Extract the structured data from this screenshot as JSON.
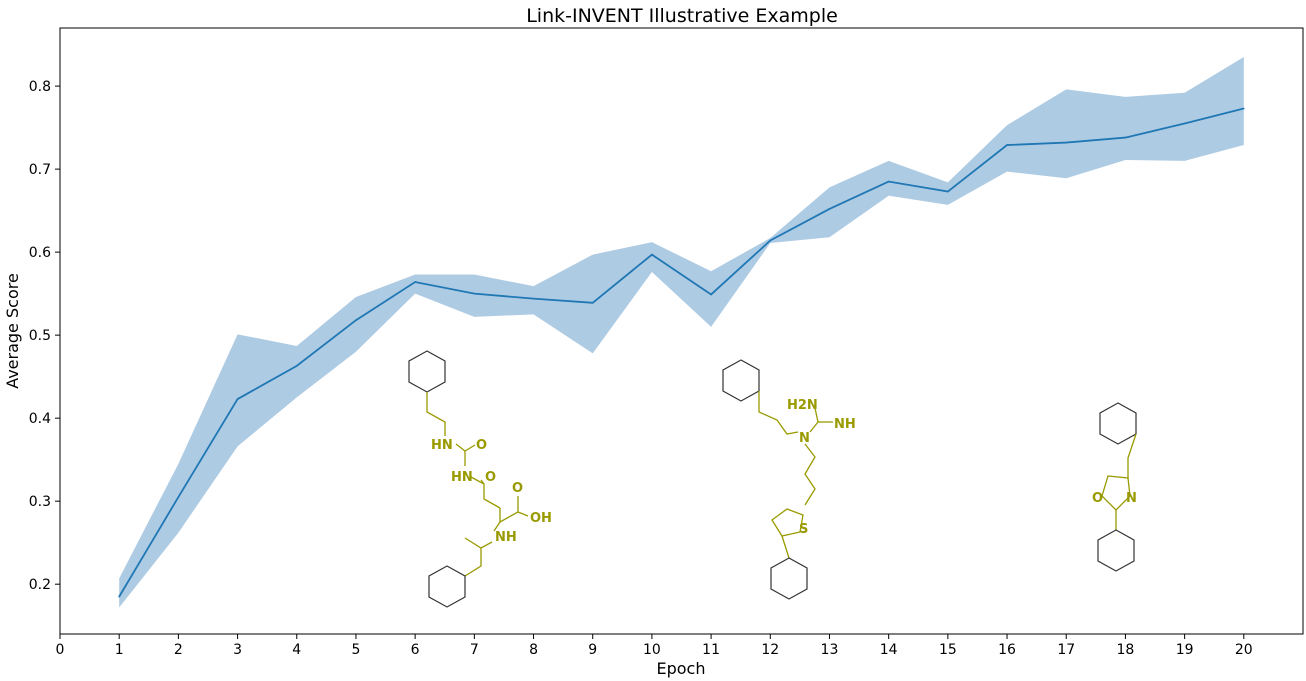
{
  "chart_data": {
    "type": "line",
    "title": "Link-INVENT Illustrative Example",
    "xlabel": "Epoch",
    "ylabel": "Average Score",
    "xlim": [
      0,
      21
    ],
    "ylim": [
      0.14,
      0.87
    ],
    "x_ticks": [
      0,
      1,
      2,
      3,
      4,
      5,
      6,
      7,
      8,
      9,
      10,
      11,
      12,
      13,
      14,
      15,
      16,
      17,
      18,
      19,
      20
    ],
    "y_ticks": [
      0.2,
      0.3,
      0.4,
      0.5,
      0.6,
      0.7,
      0.8
    ],
    "grid": false,
    "x": [
      1,
      2,
      3,
      4,
      5,
      6,
      7,
      8,
      9,
      10,
      11,
      12,
      13,
      14,
      15,
      16,
      17,
      18,
      19,
      20
    ],
    "series": [
      {
        "values": [
          0.185,
          0.305,
          0.423,
          0.463,
          0.518,
          0.564,
          0.55,
          0.544,
          0.539,
          0.597,
          0.549,
          0.614,
          0.652,
          0.685,
          0.673,
          0.729,
          0.732,
          0.738,
          0.755,
          0.773
        ],
        "lower": [
          0.172,
          0.262,
          0.366,
          0.425,
          0.48,
          0.55,
          0.522,
          0.525,
          0.478,
          0.576,
          0.51,
          0.611,
          0.618,
          0.668,
          0.657,
          0.697,
          0.689,
          0.711,
          0.71,
          0.729
        ],
        "upper": [
          0.207,
          0.345,
          0.501,
          0.487,
          0.546,
          0.573,
          0.573,
          0.559,
          0.597,
          0.612,
          0.577,
          0.617,
          0.678,
          0.71,
          0.684,
          0.753,
          0.796,
          0.787,
          0.792,
          0.835
        ],
        "color": "#1f77b4",
        "band_color": "#aecbe4"
      }
    ],
    "annotations": {
      "molecule_1": {
        "atoms": [
          "HN",
          "O",
          "HN",
          "O",
          "OH",
          "NH"
        ]
      },
      "molecule_2": {
        "atoms": [
          "H2N",
          "N",
          "NH",
          "S"
        ]
      },
      "molecule_3": {
        "atoms": [
          "O",
          "N"
        ]
      }
    }
  }
}
